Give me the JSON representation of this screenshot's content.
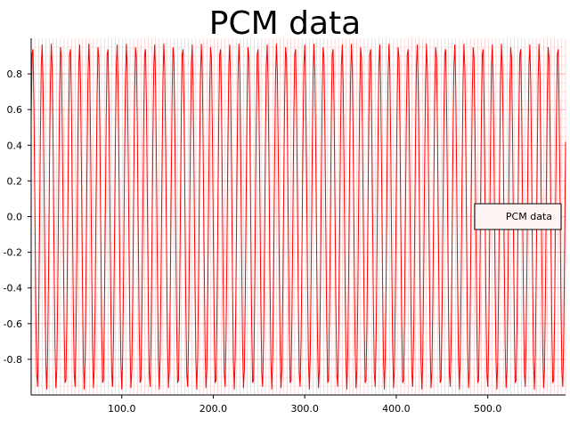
{
  "chart_data": {
    "type": "line",
    "title": "PCM data",
    "xlabel": "",
    "ylabel": "",
    "xlim": [
      1,
      585
    ],
    "ylim": [
      -1.0,
      1.0
    ],
    "x_ticks": [
      100.0,
      200.0,
      300.0,
      400.0,
      500.0
    ],
    "x_tick_labels": [
      "100.0",
      "200.0",
      "300.0",
      "400.0",
      "500.0"
    ],
    "y_ticks": [
      0.8,
      0.6,
      0.4,
      0.2,
      0.0,
      -0.2,
      -0.4,
      -0.6,
      -0.8
    ],
    "y_tick_labels": [
      "0.8",
      "0.6",
      "0.4",
      "0.2",
      "0.0",
      "-0.2",
      "-0.4",
      "-0.6",
      "-0.8"
    ],
    "grid": true,
    "legend_position": "right",
    "series": [
      {
        "name": "PCM data",
        "color": "#ff0000",
        "signal": "sine",
        "amplitude": 0.97,
        "period_samples": 10.25,
        "n_samples": 585
      }
    ]
  }
}
